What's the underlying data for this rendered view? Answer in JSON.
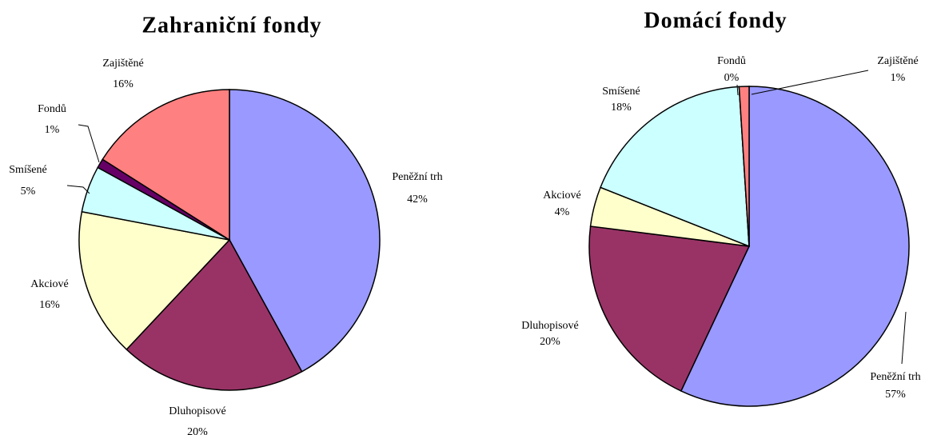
{
  "chart_data": [
    {
      "type": "pie",
      "title": "Zahraniční fondy",
      "categories": [
        "Peněžní trh",
        "Dluhopisové",
        "Akciové",
        "Smíšené",
        "Fondů",
        "Zajištěné"
      ],
      "values": [
        42,
        20,
        16,
        5,
        1,
        16
      ],
      "value_labels": [
        "42%",
        "20%",
        "16%",
        "5%",
        "1%",
        "16%"
      ],
      "colors": [
        "#9999ff",
        "#993366",
        "#ffffcc",
        "#ccffff",
        "#660066",
        "#ff8080"
      ]
    },
    {
      "type": "pie",
      "title": "Domácí fondy",
      "categories": [
        "Peněžní trh",
        "Dluhopisové",
        "Akciové",
        "Smíšené",
        "Fondů",
        "Zajištěné"
      ],
      "values": [
        57,
        20,
        4,
        18,
        0,
        1
      ],
      "value_labels": [
        "57%",
        "20%",
        "4%",
        "18%",
        "0%",
        "1%"
      ],
      "colors": [
        "#9999ff",
        "#993366",
        "#ffffcc",
        "#ccffff",
        "#660066",
        "#ff8080"
      ]
    }
  ]
}
